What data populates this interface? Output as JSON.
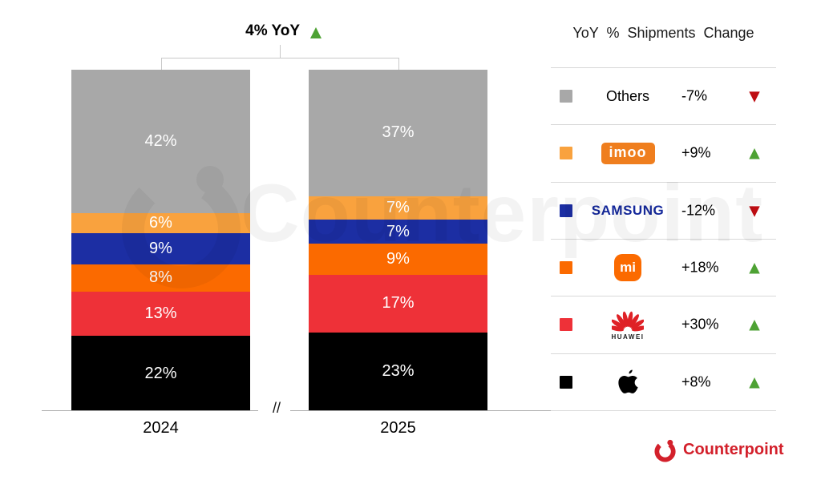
{
  "title": {
    "label": "4% YoY",
    "arrow": "▲",
    "arrow_color": "#4EA234"
  },
  "axis": {
    "break_label": "//"
  },
  "legend": {
    "header": "YoY % Shipments Change",
    "rows": [
      {
        "brand": "Others",
        "change": "-7%",
        "arrow": "▼",
        "arrow_color": "#BE0D12",
        "swatch": "#A8A8A8"
      },
      {
        "brand": "imoo",
        "logo_text": "imoo",
        "logo_bg": "#EF7E1E",
        "change": "+9%",
        "arrow": "▲",
        "arrow_color": "#4EA234",
        "swatch": "#F9A23E"
      },
      {
        "brand": "Samsung",
        "logo_text": "SAMSUNG",
        "logo_color": "#14289B",
        "change": "-12%",
        "arrow": "▼",
        "arrow_color": "#BE0D12",
        "swatch": "#1C2EA3"
      },
      {
        "brand": "Xiaomi",
        "logo_text": "mi",
        "logo_bg": "#FB6A00",
        "change": "+18%",
        "arrow": "▲",
        "arrow_color": "#4EA234",
        "swatch": "#FB6A00"
      },
      {
        "brand": "Huawei",
        "logo_text": "HUAWEI",
        "logo_color": "#DF2126",
        "change": "+30%",
        "arrow": "▲",
        "arrow_color": "#4EA234",
        "swatch": "#EE3138"
      },
      {
        "brand": "Apple",
        "change": "+8%",
        "arrow": "▲",
        "arrow_color": "#4EA234",
        "swatch": "#000000"
      }
    ]
  },
  "chart_data": {
    "type": "bar",
    "stacked": true,
    "unit": "percent share of shipments",
    "title": "4% YoY",
    "legend_title": "YoY % Shipments Change",
    "total_yoy_change": "+4%",
    "categories": [
      "2024",
      "2025"
    ],
    "ylim": [
      0,
      100
    ],
    "series": [
      {
        "name": "Others",
        "color": "#A8A8A8",
        "values": [
          42,
          37
        ],
        "labels": [
          "42%",
          "37%"
        ],
        "yoy_change": "-7%"
      },
      {
        "name": "imoo",
        "color": "#F9A23E",
        "values": [
          6,
          7
        ],
        "labels": [
          "6%",
          "7%"
        ],
        "yoy_change": "+9%"
      },
      {
        "name": "Samsung",
        "color": "#1C2EA3",
        "values": [
          9,
          7
        ],
        "labels": [
          "9%",
          "7%"
        ],
        "yoy_change": "-12%"
      },
      {
        "name": "Xiaomi",
        "color": "#FB6A00",
        "values": [
          8,
          9
        ],
        "labels": [
          "8%",
          "9%"
        ],
        "yoy_change": "+18%"
      },
      {
        "name": "Huawei",
        "color": "#EE3138",
        "values": [
          13,
          17
        ],
        "labels": [
          "13%",
          "17%"
        ],
        "yoy_change": "+30%"
      },
      {
        "name": "Apple",
        "color": "#000000",
        "values": [
          22,
          23
        ],
        "labels": [
          "22%",
          "23%"
        ],
        "yoy_change": "+8%"
      }
    ]
  },
  "watermark": {
    "text": "Counterpoint"
  },
  "footer": {
    "brand": "Counterpoint",
    "color": "#D3202B"
  }
}
